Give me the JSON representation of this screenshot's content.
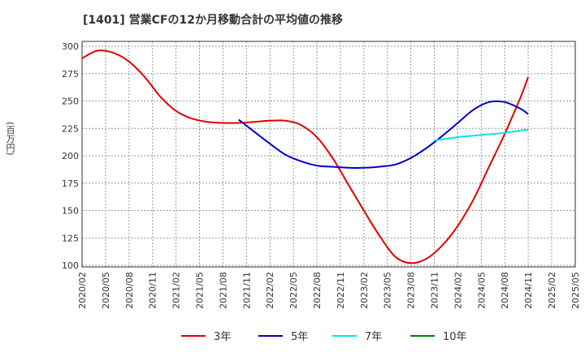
{
  "chart_data": {
    "type": "line",
    "title": "[1401]  営業CFの12か月移動合計の平均値の推移",
    "ylabel": "(百万円)",
    "ylim": [
      100,
      300
    ],
    "yticks": [
      100,
      125,
      150,
      175,
      200,
      225,
      250,
      275,
      300
    ],
    "xticks": [
      "2020/02",
      "2020/05",
      "2020/08",
      "2020/11",
      "2021/02",
      "2021/05",
      "2021/08",
      "2021/11",
      "2022/02",
      "2022/05",
      "2022/08",
      "2022/11",
      "2023/02",
      "2023/05",
      "2023/08",
      "2023/11",
      "2024/02",
      "2024/05",
      "2024/08",
      "2024/11",
      "2025/02",
      "2025/05"
    ],
    "grid": true,
    "legend_position": "bottom",
    "series": [
      {
        "name": "3年",
        "color": "#e00000",
        "x": [
          "2020/02",
          "2020/04",
          "2020/06",
          "2020/08",
          "2020/10",
          "2020/12",
          "2021/02",
          "2021/04",
          "2021/06",
          "2021/08",
          "2021/10",
          "2021/12",
          "2022/02",
          "2022/04",
          "2022/06",
          "2022/08",
          "2022/10",
          "2022/12",
          "2023/02",
          "2023/04",
          "2023/06",
          "2023/08",
          "2023/10",
          "2023/12",
          "2024/02",
          "2024/04",
          "2024/06",
          "2024/08",
          "2024/10",
          "2024/11"
        ],
        "values": [
          289,
          296,
          294,
          286,
          272,
          254,
          241,
          234,
          231,
          230,
          230,
          231,
          232,
          232,
          228,
          217,
          198,
          174,
          150,
          127,
          108,
          102,
          106,
          118,
          136,
          160,
          190,
          220,
          253,
          272
        ]
      },
      {
        "name": "5年",
        "color": "#0000cc",
        "x": [
          "2021/10",
          "2021/12",
          "2022/02",
          "2022/04",
          "2022/06",
          "2022/08",
          "2022/10",
          "2022/12",
          "2023/02",
          "2023/04",
          "2023/06",
          "2023/08",
          "2023/10",
          "2023/12",
          "2024/02",
          "2024/04",
          "2024/06",
          "2024/08",
          "2024/10",
          "2024/11"
        ],
        "values": [
          233,
          222,
          211,
          201,
          195,
          191,
          190,
          189,
          189,
          190,
          192,
          198,
          207,
          218,
          230,
          242,
          249,
          249,
          243,
          238
        ]
      },
      {
        "name": "7年",
        "color": "#00e5ee",
        "x": [
          "2023/11",
          "2024/02",
          "2024/05",
          "2024/08",
          "2024/11"
        ],
        "values": [
          214,
          217,
          219,
          221,
          224
        ]
      },
      {
        "name": "10年",
        "color": "#008000",
        "x": [],
        "values": []
      }
    ]
  }
}
